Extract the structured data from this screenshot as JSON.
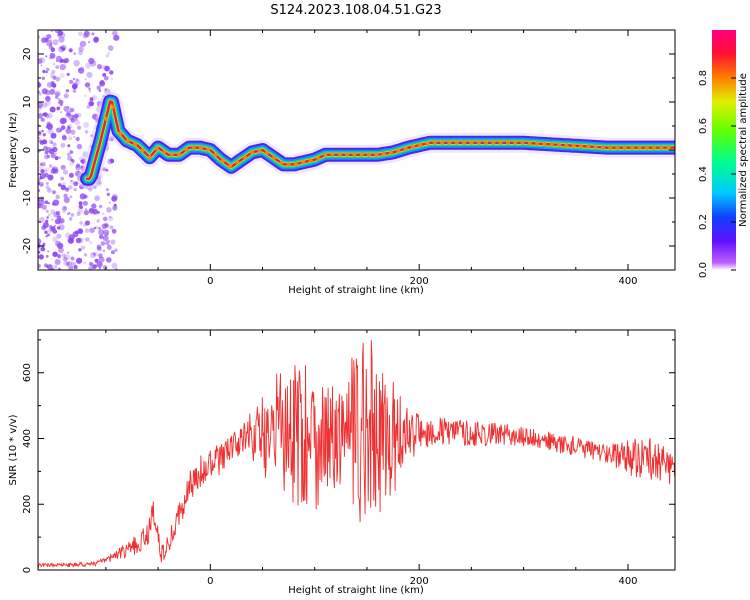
{
  "title": "S124.2023.108.04.51.G23",
  "colors": {
    "snr_line": "#f03030",
    "ridge_core": "#e02050",
    "ridge_mid": "#00d8a0",
    "ridge_outer": "#3a10f0",
    "scatter": "#8a40f0"
  },
  "chart_data": [
    {
      "type": "heatmap",
      "title": "",
      "xlabel": "Height of straight line (km)",
      "ylabel": "Frequency (Hz)",
      "xlim": [
        -165,
        445
      ],
      "ylim": [
        -25,
        25
      ],
      "x_ticks": [
        "0",
        "200",
        "400"
      ],
      "y_ticks": [
        "-20",
        "-10",
        "0",
        "10",
        "20"
      ],
      "colorbar": {
        "label": "Normalized spectral amplitude",
        "range": [
          0,
          1
        ],
        "ticks": [
          "0.0",
          "0.2",
          "0.4",
          "0.6",
          "0.8"
        ],
        "colormap": [
          "#8000ff",
          "#2020ff",
          "#00c8ff",
          "#00ff80",
          "#80ff00",
          "#ffd000",
          "#ff4000",
          "#ff0080"
        ]
      },
      "ridge": [
        {
          "x": -115,
          "f": -6
        },
        {
          "x": -105,
          "f": 2
        },
        {
          "x": -95,
          "f": 11
        },
        {
          "x": -88,
          "f": 4
        },
        {
          "x": -80,
          "f": 2
        },
        {
          "x": -70,
          "f": 1
        },
        {
          "x": -58,
          "f": -1.5
        },
        {
          "x": -50,
          "f": 0.5
        },
        {
          "x": -40,
          "f": -1
        },
        {
          "x": -30,
          "f": -1
        },
        {
          "x": -20,
          "f": 0.5
        },
        {
          "x": -10,
          "f": 0.5
        },
        {
          "x": 0,
          "f": 0
        },
        {
          "x": 10,
          "f": -2
        },
        {
          "x": 20,
          "f": -3.5
        },
        {
          "x": 30,
          "f": -2
        },
        {
          "x": 40,
          "f": -0.5
        },
        {
          "x": 50,
          "f": 0
        },
        {
          "x": 60,
          "f": -1.5
        },
        {
          "x": 70,
          "f": -3
        },
        {
          "x": 80,
          "f": -3
        },
        {
          "x": 90,
          "f": -2.5
        },
        {
          "x": 100,
          "f": -2
        },
        {
          "x": 110,
          "f": -1
        },
        {
          "x": 130,
          "f": -1
        },
        {
          "x": 160,
          "f": -1
        },
        {
          "x": 175,
          "f": -0.5
        },
        {
          "x": 190,
          "f": 0.5
        },
        {
          "x": 210,
          "f": 1.5
        },
        {
          "x": 250,
          "f": 1.5
        },
        {
          "x": 300,
          "f": 1.5
        },
        {
          "x": 340,
          "f": 1
        },
        {
          "x": 380,
          "f": 0.5
        },
        {
          "x": 420,
          "f": 0.5
        },
        {
          "x": 445,
          "f": 0.5
        }
      ]
    },
    {
      "type": "line",
      "title": "",
      "xlabel": "Height of straight line (km)",
      "ylabel": "SNR (10 * v/v)",
      "xlim": [
        -165,
        445
      ],
      "ylim": [
        0,
        730
      ],
      "x_ticks": [
        "0",
        "200",
        "400"
      ],
      "y_ticks": [
        "0",
        "200",
        "400",
        "600"
      ],
      "series": [
        {
          "points": [
            [
              -165,
              15
            ],
            [
              -130,
              15
            ],
            [
              -110,
              20
            ],
            [
              -100,
              30
            ],
            [
              -90,
              45
            ],
            [
              -80,
              60
            ],
            [
              -70,
              80
            ],
            [
              -60,
              100
            ],
            [
              -55,
              200
            ],
            [
              -52,
              130
            ],
            [
              -48,
              60
            ],
            [
              -45,
              50
            ],
            [
              -40,
              80
            ],
            [
              -30,
              170
            ],
            [
              -20,
              250
            ],
            [
              -10,
              290
            ],
            [
              0,
              310
            ],
            [
              10,
              340
            ],
            [
              20,
              370
            ],
            [
              30,
              395
            ],
            [
              40,
              410
            ],
            [
              50,
              415
            ],
            [
              60,
              420
            ],
            [
              70,
              420
            ],
            [
              80,
              420
            ],
            [
              90,
              410
            ],
            [
              100,
              400
            ],
            [
              120,
              400
            ],
            [
              140,
              400
            ],
            [
              160,
              400
            ],
            [
              180,
              410
            ],
            [
              200,
              420
            ],
            [
              230,
              420
            ],
            [
              260,
              415
            ],
            [
              290,
              410
            ],
            [
              320,
              395
            ],
            [
              350,
              375
            ],
            [
              380,
              355
            ],
            [
              410,
              345
            ],
            [
              430,
              330
            ],
            [
              445,
              310
            ]
          ],
          "noise": [
            [
              -165,
              5
            ],
            [
              -100,
              8
            ],
            [
              -60,
              40
            ],
            [
              -40,
              30
            ],
            [
              -10,
              60
            ],
            [
              30,
              40
            ],
            [
              55,
              150
            ],
            [
              80,
              260
            ],
            [
              100,
              220
            ],
            [
              120,
              160
            ],
            [
              140,
              280
            ],
            [
              160,
              260
            ],
            [
              180,
              140
            ],
            [
              200,
              50
            ],
            [
              300,
              30
            ],
            [
              380,
              30
            ],
            [
              410,
              70
            ],
            [
              430,
              60
            ],
            [
              445,
              60
            ]
          ]
        }
      ]
    }
  ]
}
